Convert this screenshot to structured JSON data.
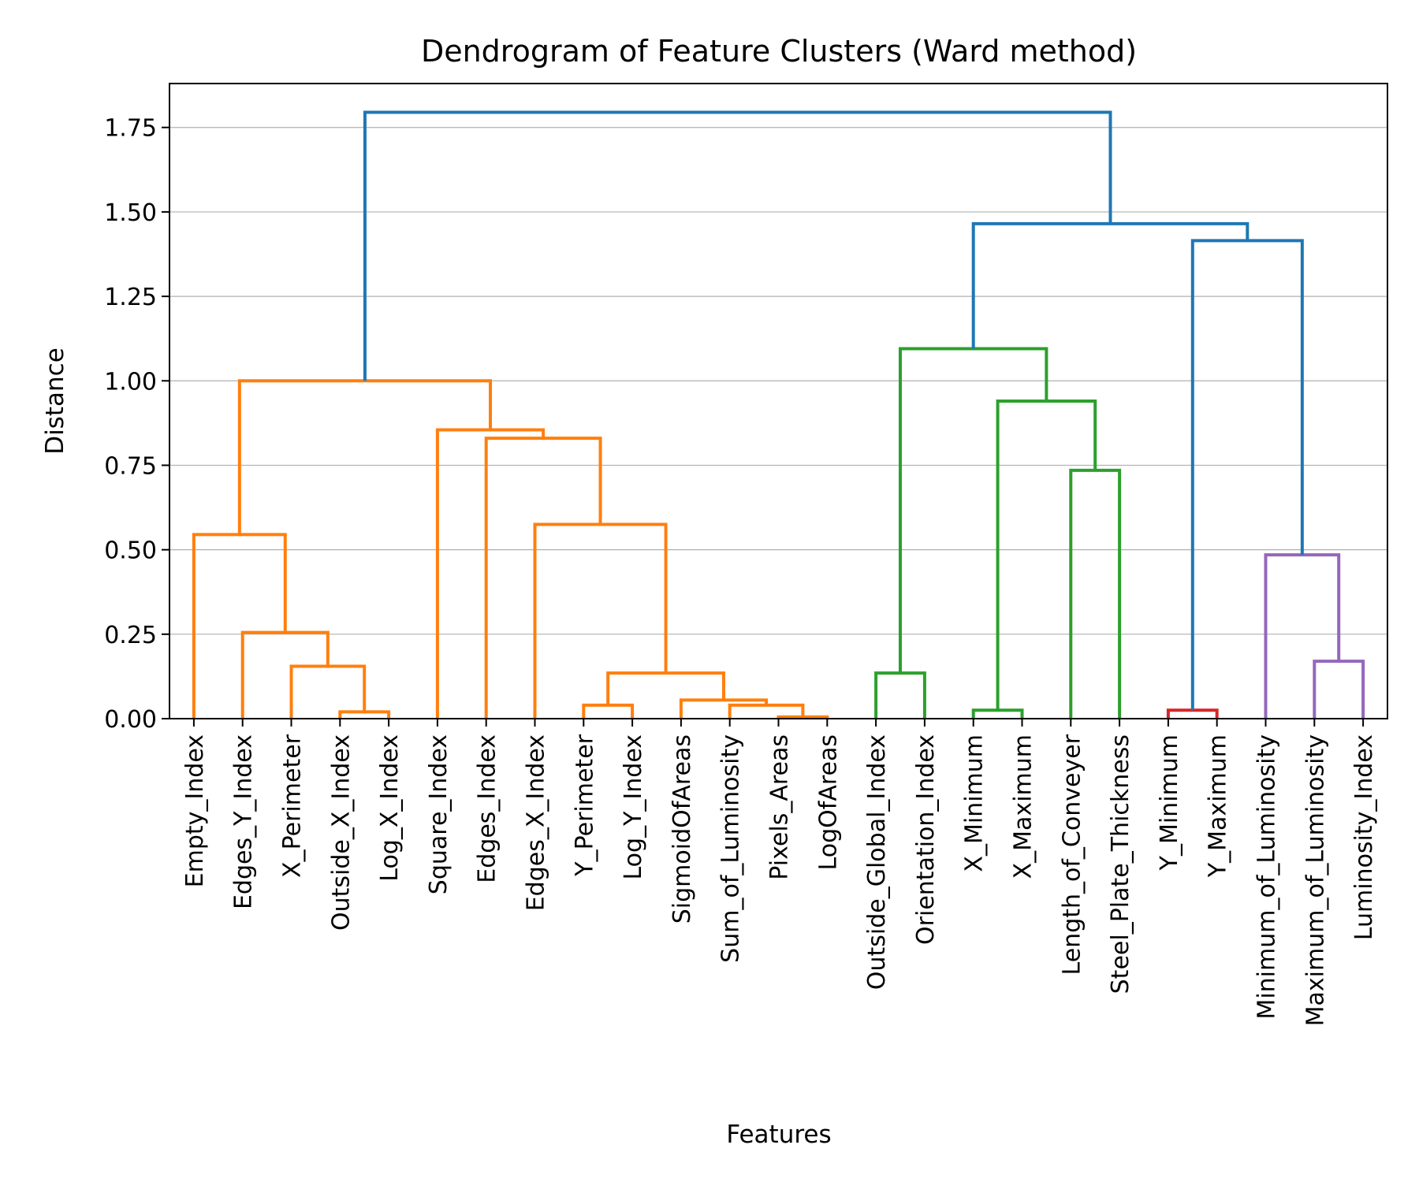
{
  "chart_data": {
    "type": "dendrogram",
    "title": "Dendrogram of Feature Clusters (Ward method)",
    "xlabel": "Features",
    "ylabel": "Distance",
    "ylim": [
      0,
      1.88
    ],
    "yticks": [
      0.0,
      0.25,
      0.5,
      0.75,
      1.0,
      1.25,
      1.5,
      1.75
    ],
    "ytick_labels": [
      "0.00",
      "0.25",
      "0.50",
      "0.75",
      "1.00",
      "1.25",
      "1.50",
      "1.75"
    ],
    "grid": "horizontal",
    "leaves": [
      "Empty_Index",
      "Edges_Y_Index",
      "X_Perimeter",
      "Outside_X_Index",
      "Log_X_Index",
      "Square_Index",
      "Edges_Index",
      "Edges_X_Index",
      "Y_Perimeter",
      "Log_Y_Index",
      "SigmoidOfAreas",
      "Sum_of_Luminosity",
      "Pixels_Areas",
      "LogOfAreas",
      "Outside_Global_Index",
      "Orientation_Index",
      "X_Minimum",
      "X_Maximum",
      "Length_of_Conveyer",
      "Steel_Plate_Thickness",
      "Y_Minimum",
      "Y_Maximum",
      "Minimum_of_Luminosity",
      "Maximum_of_Luminosity",
      "Luminosity_Index"
    ],
    "merges": [
      {
        "id": "m1",
        "left": "Pixels_Areas",
        "right": "LogOfAreas",
        "height": 0.005,
        "color": "#ff7f0e"
      },
      {
        "id": "m2",
        "left": "Outside_X_Index",
        "right": "Log_X_Index",
        "height": 0.02,
        "color": "#ff7f0e"
      },
      {
        "id": "m3",
        "left": "X_Minimum",
        "right": "X_Maximum",
        "height": 0.025,
        "color": "#2ca02c"
      },
      {
        "id": "m4",
        "left": "Y_Minimum",
        "right": "Y_Maximum",
        "height": 0.025,
        "color": "#d62728"
      },
      {
        "id": "m5",
        "left": "Sum_of_Luminosity",
        "right": "m1",
        "height": 0.04,
        "color": "#ff7f0e"
      },
      {
        "id": "m6",
        "left": "Y_Perimeter",
        "right": "Log_Y_Index",
        "height": 0.04,
        "color": "#ff7f0e"
      },
      {
        "id": "m7",
        "left": "SigmoidOfAreas",
        "right": "m5",
        "height": 0.055,
        "color": "#ff7f0e"
      },
      {
        "id": "m8",
        "left": "Outside_Global_Index",
        "right": "Orientation_Index",
        "height": 0.135,
        "color": "#2ca02c"
      },
      {
        "id": "m9",
        "left": "m6",
        "right": "m7",
        "height": 0.135,
        "color": "#ff7f0e"
      },
      {
        "id": "m10",
        "left": "X_Perimeter",
        "right": "m2",
        "height": 0.155,
        "color": "#ff7f0e"
      },
      {
        "id": "m11",
        "left": "Maximum_of_Luminosity",
        "right": "Luminosity_Index",
        "height": 0.17,
        "color": "#9467bd"
      },
      {
        "id": "m12",
        "left": "Edges_Y_Index",
        "right": "m10",
        "height": 0.255,
        "color": "#ff7f0e"
      },
      {
        "id": "m13",
        "left": "Minimum_of_Luminosity",
        "right": "m11",
        "height": 0.485,
        "color": "#9467bd"
      },
      {
        "id": "m14",
        "left": "Empty_Index",
        "right": "m12",
        "height": 0.545,
        "color": "#ff7f0e"
      },
      {
        "id": "m15",
        "left": "Edges_X_Index",
        "right": "m9",
        "height": 0.575,
        "color": "#ff7f0e"
      },
      {
        "id": "m16",
        "left": "Length_of_Conveyer",
        "right": "Steel_Plate_Thickness",
        "height": 0.735,
        "color": "#2ca02c"
      },
      {
        "id": "m17",
        "left": "Edges_Index",
        "right": "m15",
        "height": 0.83,
        "color": "#ff7f0e"
      },
      {
        "id": "m18",
        "left": "Square_Index",
        "right": "m17",
        "height": 0.855,
        "color": "#ff7f0e"
      },
      {
        "id": "m19",
        "left": "m3",
        "right": "m16",
        "height": 0.94,
        "color": "#2ca02c"
      },
      {
        "id": "m20",
        "left": "m14",
        "right": "m18",
        "height": 1.0,
        "color": "#ff7f0e"
      },
      {
        "id": "m21",
        "left": "m8",
        "right": "m19",
        "height": 1.095,
        "color": "#2ca02c"
      },
      {
        "id": "m22",
        "left": "m4",
        "right": "m13",
        "height": 1.415,
        "color": "#1f77b4"
      },
      {
        "id": "m23",
        "left": "m21",
        "right": "m22",
        "height": 1.465,
        "color": "#1f77b4"
      },
      {
        "id": "m24",
        "left": "m20",
        "right": "m23",
        "height": 1.795,
        "color": "#1f77b4"
      }
    ]
  }
}
